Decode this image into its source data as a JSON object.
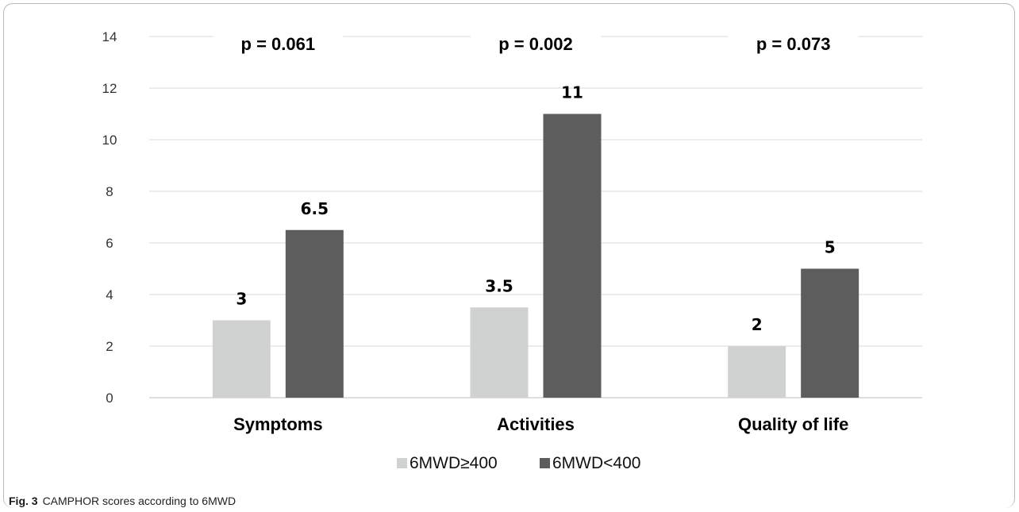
{
  "figure_caption": {
    "label": "Fig. 3",
    "text": "CAMPHOR scores according to 6MWD"
  },
  "chart_data": {
    "type": "bar",
    "categories": [
      "Symptoms",
      "Activities",
      "Quality of life"
    ],
    "series": [
      {
        "name": "6MWD≥400",
        "values": [
          3,
          3.5,
          2
        ],
        "labels": [
          "3",
          "3.5",
          "2"
        ],
        "color": "#d0d2d1"
      },
      {
        "name": "6MWD<400",
        "values": [
          6.5,
          11,
          5
        ],
        "labels": [
          "6.5",
          "11",
          "5"
        ],
        "color": "#5d5d5d"
      }
    ],
    "annotations": [
      "p = 0.061",
      "p = 0.002",
      "p = 0.073"
    ],
    "ylim": [
      0,
      14
    ],
    "yticks": [
      0,
      2,
      4,
      6,
      8,
      10,
      12,
      14
    ],
    "ytick_labels": [
      "0",
      "2",
      "4",
      "6",
      "8",
      "10",
      "12",
      "14"
    ],
    "grid": true,
    "legend_position": "bottom",
    "gridline_color": "#d9d9d9"
  }
}
